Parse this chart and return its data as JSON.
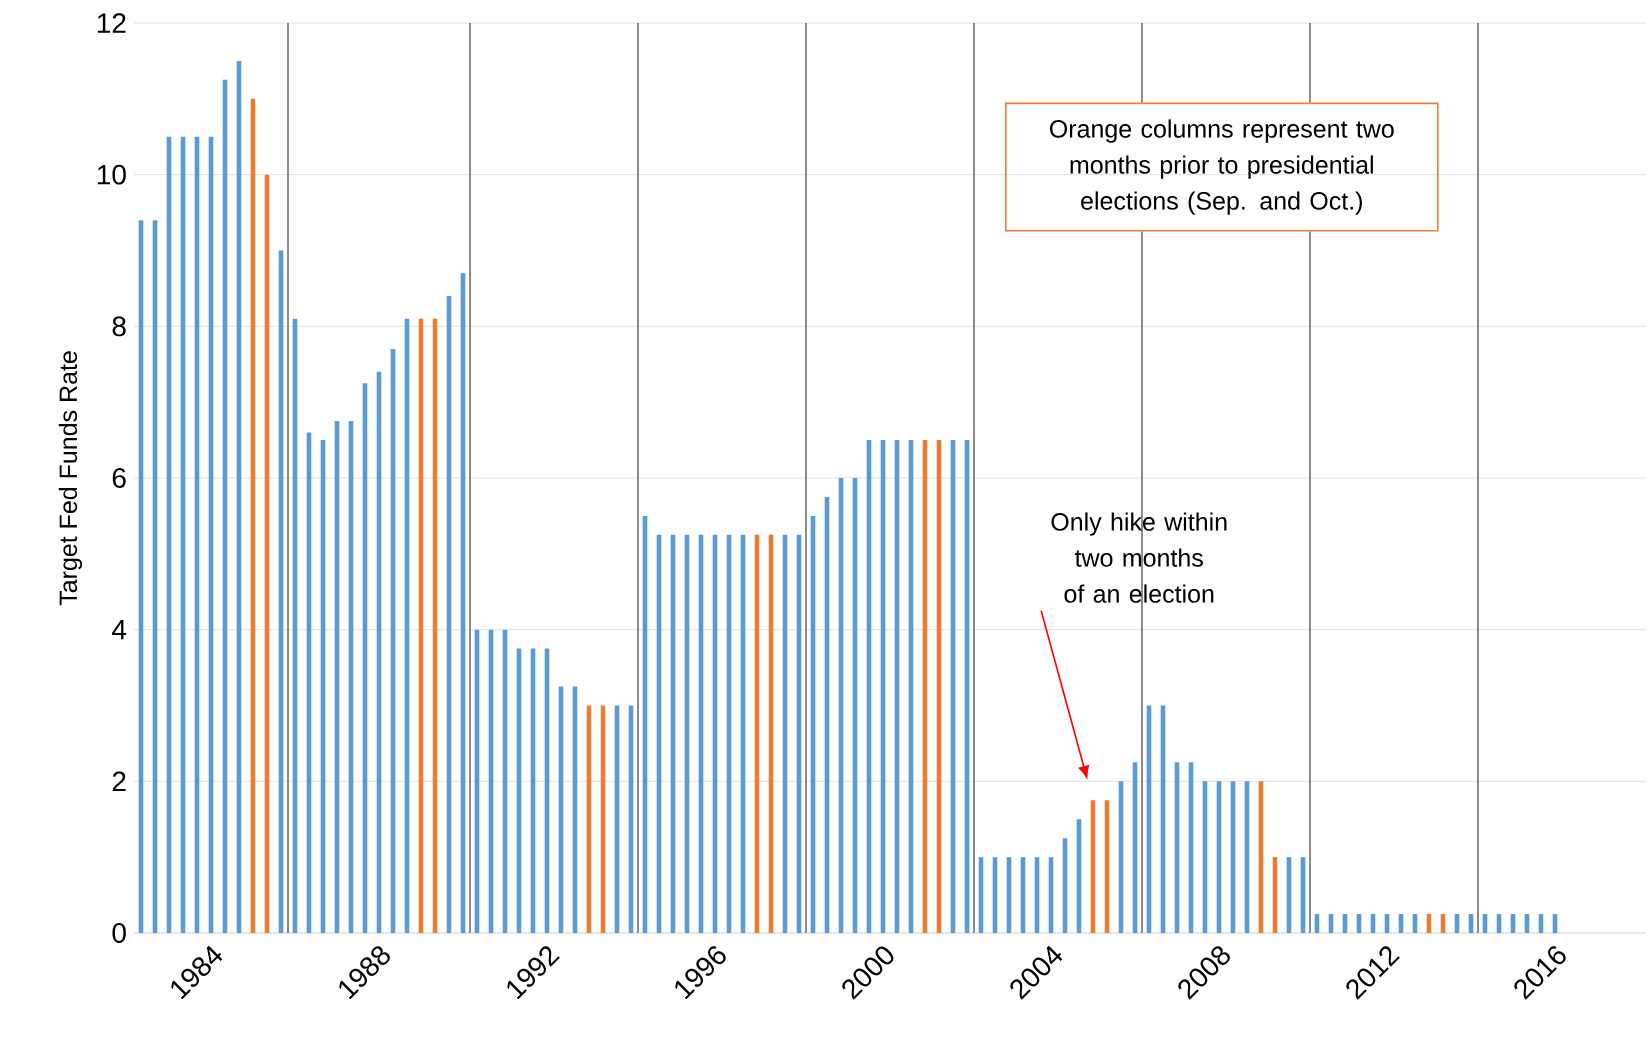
{
  "chart_data": {
    "type": "bar",
    "ylabel": "Target Fed Funds Rate",
    "categories": [
      null,
      null,
      null,
      null,
      null,
      "1984",
      null,
      null,
      null,
      null,
      null,
      null,
      null,
      null,
      null,
      null,
      null,
      "1988",
      null,
      null,
      null,
      null,
      null,
      null,
      null,
      null,
      null,
      null,
      null,
      "1992",
      null,
      null,
      null,
      null,
      null,
      null,
      null,
      null,
      null,
      null,
      null,
      "1996",
      null,
      null,
      null,
      null,
      null,
      null,
      null,
      null,
      null,
      null,
      null,
      "2000",
      null,
      null,
      null,
      null,
      null,
      null,
      null,
      null,
      null,
      null,
      null,
      "2004",
      null,
      null,
      null,
      null,
      null,
      null,
      null,
      null,
      null,
      null,
      null,
      "2008",
      null,
      null,
      null,
      null,
      null,
      null,
      null,
      null,
      null,
      null,
      null,
      "2012",
      null,
      null,
      null,
      null,
      null,
      null,
      null,
      null,
      null,
      null,
      null,
      "2016",
      null,
      null,
      null,
      null,
      null,
      null
    ],
    "values": [
      9.4,
      9.4,
      10.5,
      10.5,
      10.5,
      10.5,
      11.25,
      11.5,
      11,
      10,
      9,
      8.1,
      6.6,
      6.5,
      6.75,
      6.75,
      7.25,
      7.4,
      7.7,
      8.1,
      8.1,
      8.1,
      8.4,
      8.7,
      4,
      4,
      4,
      3.75,
      3.75,
      3.75,
      3.25,
      3.25,
      3,
      3,
      3,
      3,
      5.5,
      5.25,
      5.25,
      5.25,
      5.25,
      5.25,
      5.25,
      5.25,
      5.25,
      5.25,
      5.25,
      5.25,
      5.5,
      5.75,
      6,
      6,
      6.5,
      6.5,
      6.5,
      6.5,
      6.5,
      6.5,
      6.5,
      6.5,
      1,
      1,
      1,
      1,
      1,
      1,
      1.25,
      1.5,
      1.75,
      1.75,
      2,
      2.25,
      3,
      3,
      2.25,
      2.25,
      2,
      2,
      2,
      2,
      2,
      1,
      1,
      1,
      0.25,
      0.25,
      0.25,
      0.25,
      0.25,
      0.25,
      0.25,
      0.25,
      0.25,
      0.25,
      0.25,
      0.25,
      0.25,
      0.25,
      0.25,
      0.25,
      0.25,
      0.25,
      null,
      null,
      null,
      null,
      null,
      null
    ],
    "colors": [
      "#5b9bd5",
      "#5b9bd5",
      "#5b9bd5",
      "#5b9bd5",
      "#5b9bd5",
      "#5b9bd5",
      "#5b9bd5",
      "#5b9bd5",
      "#ed7d31",
      "#ed7d31",
      "#5b9bd5",
      "#5b9bd5",
      "#5b9bd5",
      "#5b9bd5",
      "#5b9bd5",
      "#5b9bd5",
      "#5b9bd5",
      "#5b9bd5",
      "#5b9bd5",
      "#5b9bd5",
      "#ed7d31",
      "#ed7d31",
      "#5b9bd5",
      "#5b9bd5",
      "#5b9bd5",
      "#5b9bd5",
      "#5b9bd5",
      "#5b9bd5",
      "#5b9bd5",
      "#5b9bd5",
      "#5b9bd5",
      "#5b9bd5",
      "#ed7d31",
      "#ed7d31",
      "#5b9bd5",
      "#5b9bd5",
      "#5b9bd5",
      "#5b9bd5",
      "#5b9bd5",
      "#5b9bd5",
      "#5b9bd5",
      "#5b9bd5",
      "#5b9bd5",
      "#5b9bd5",
      "#ed7d31",
      "#ed7d31",
      "#5b9bd5",
      "#5b9bd5",
      "#5b9bd5",
      "#5b9bd5",
      "#5b9bd5",
      "#5b9bd5",
      "#5b9bd5",
      "#5b9bd5",
      "#5b9bd5",
      "#5b9bd5",
      "#ed7d31",
      "#ed7d31",
      "#5b9bd5",
      "#5b9bd5",
      "#5b9bd5",
      "#5b9bd5",
      "#5b9bd5",
      "#5b9bd5",
      "#5b9bd5",
      "#5b9bd5",
      "#5b9bd5",
      "#5b9bd5",
      "#ed7d31",
      "#ed7d31",
      "#5b9bd5",
      "#5b9bd5",
      "#5b9bd5",
      "#5b9bd5",
      "#5b9bd5",
      "#5b9bd5",
      "#5b9bd5",
      "#5b9bd5",
      "#5b9bd5",
      "#5b9bd5",
      "#ed7d31",
      "#ed7d31",
      "#5b9bd5",
      "#5b9bd5",
      "#5b9bd5",
      "#5b9bd5",
      "#5b9bd5",
      "#5b9bd5",
      "#5b9bd5",
      "#5b9bd5",
      "#5b9bd5",
      "#5b9bd5",
      "#ed7d31",
      "#ed7d31",
      "#5b9bd5",
      "#5b9bd5",
      "#5b9bd5",
      "#5b9bd5",
      "#5b9bd5",
      "#5b9bd5",
      "#5b9bd5",
      "#5b9bd5",
      null,
      null,
      null,
      null,
      null,
      null
    ],
    "ylim": [
      0,
      12
    ],
    "yticks": [
      0,
      2,
      4,
      6,
      8,
      10,
      12
    ],
    "grid": "y",
    "annotations": [
      "Orange columns represent two months prior to presidential elections (Sep. and Oct.)",
      "Only hike within two months of an election"
    ]
  }
}
